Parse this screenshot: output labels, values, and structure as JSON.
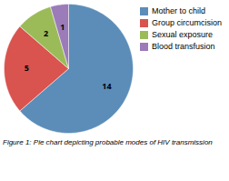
{
  "chart_data": {
    "type": "pie",
    "categories": [
      "Mother to child",
      "Group circumcision",
      "Sexual exposure",
      "Blood transfusion"
    ],
    "values": [
      14,
      5,
      2,
      1
    ],
    "colors": [
      "#5B8DB8",
      "#D9534F",
      "#9BBB59",
      "#9B7BB8"
    ],
    "data_labels": true,
    "legend": "upper right",
    "caption": "Figure 1: Pie chart depicting probable modes of HIV transmission"
  }
}
